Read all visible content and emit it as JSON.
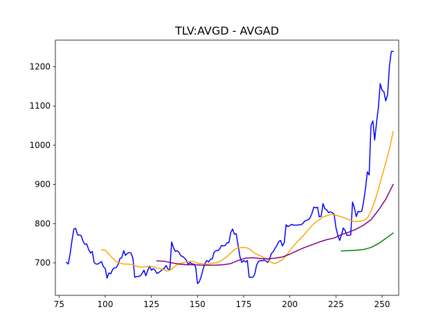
{
  "chart_data": {
    "type": "line",
    "title": "TLV:AVGD - AVGAD",
    "xlabel": "",
    "ylabel": "",
    "xlim": [
      73,
      259
    ],
    "ylim": [
      617,
      1268
    ],
    "x_ticks": [
      75,
      100,
      125,
      150,
      175,
      200,
      225,
      250
    ],
    "y_ticks": [
      700,
      800,
      900,
      1000,
      1100,
      1200
    ],
    "grid": false,
    "legend": "none",
    "series": [
      {
        "color": "#0000ff",
        "points": [
          [
            79,
            701
          ],
          [
            80,
            697
          ],
          [
            81,
            723
          ],
          [
            82,
            757
          ],
          [
            83,
            786
          ],
          [
            84,
            788
          ],
          [
            85,
            771
          ],
          [
            86,
            771
          ],
          [
            87,
            769
          ],
          [
            88,
            755
          ],
          [
            89,
            747
          ],
          [
            90,
            748
          ],
          [
            91,
            734
          ],
          [
            92,
            725
          ],
          [
            93,
            729
          ],
          [
            94,
            701
          ],
          [
            95,
            697
          ],
          [
            96,
            697
          ],
          [
            97,
            700
          ],
          [
            98,
            703
          ],
          [
            99,
            690
          ],
          [
            100,
            686
          ],
          [
            101,
            661
          ],
          [
            102,
            674
          ],
          [
            103,
            672
          ],
          [
            104,
            683
          ],
          [
            105,
            687
          ],
          [
            106,
            688
          ],
          [
            107,
            696
          ],
          [
            108,
            711
          ],
          [
            109,
            713
          ],
          [
            110,
            731
          ],
          [
            111,
            719
          ],
          [
            112,
            724
          ],
          [
            113,
            726
          ],
          [
            114,
            725
          ],
          [
            115,
            712
          ],
          [
            116,
            663
          ],
          [
            117,
            665
          ],
          [
            118,
            665
          ],
          [
            119,
            667
          ],
          [
            120,
            673
          ],
          [
            121,
            681
          ],
          [
            122,
            667
          ],
          [
            123,
            680
          ],
          [
            124,
            692
          ],
          [
            125,
            681
          ],
          [
            126,
            685
          ],
          [
            127,
            681
          ],
          [
            128,
            673
          ],
          [
            129,
            675
          ],
          [
            130,
            679
          ],
          [
            131,
            683
          ],
          [
            132,
            686
          ],
          [
            133,
            693
          ],
          [
            134,
            684
          ],
          [
            135,
            682
          ],
          [
            136,
            753
          ],
          [
            137,
            738
          ],
          [
            138,
            729
          ],
          [
            139,
            731
          ],
          [
            140,
            726
          ],
          [
            141,
            718
          ],
          [
            142,
            716
          ],
          [
            143,
            712
          ],
          [
            144,
            706
          ],
          [
            145,
            696
          ],
          [
            146,
            701
          ],
          [
            147,
            697
          ],
          [
            148,
            697
          ],
          [
            149,
            689
          ],
          [
            150,
            647
          ],
          [
            151,
            652
          ],
          [
            152,
            665
          ],
          [
            153,
            683
          ],
          [
            154,
            698
          ],
          [
            155,
            706
          ],
          [
            156,
            702
          ],
          [
            157,
            709
          ],
          [
            158,
            710
          ],
          [
            159,
            727
          ],
          [
            160,
            731
          ],
          [
            161,
            731
          ],
          [
            162,
            735
          ],
          [
            163,
            744
          ],
          [
            164,
            743
          ],
          [
            165,
            744
          ],
          [
            166,
            751
          ],
          [
            167,
            751
          ],
          [
            168,
            777
          ],
          [
            169,
            786
          ],
          [
            170,
            773
          ],
          [
            171,
            774
          ],
          [
            172,
            744
          ],
          [
            173,
            715
          ],
          [
            174,
            701
          ],
          [
            175,
            706
          ],
          [
            176,
            702
          ],
          [
            177,
            706
          ],
          [
            178,
            663
          ],
          [
            179,
            663
          ],
          [
            180,
            663
          ],
          [
            181,
            671
          ],
          [
            182,
            694
          ],
          [
            183,
            703
          ],
          [
            184,
            706
          ],
          [
            185,
            705
          ],
          [
            186,
            707
          ],
          [
            187,
            705
          ],
          [
            188,
            701
          ],
          [
            189,
            708
          ],
          [
            190,
            724
          ],
          [
            191,
            728
          ],
          [
            192,
            737
          ],
          [
            193,
            744
          ],
          [
            194,
            754
          ],
          [
            195,
            757
          ],
          [
            196,
            743
          ],
          [
            197,
            752
          ],
          [
            198,
            797
          ],
          [
            199,
            792
          ],
          [
            200,
            795
          ],
          [
            201,
            798
          ],
          [
            202,
            796
          ],
          [
            203,
            796
          ],
          [
            204,
            796
          ],
          [
            205,
            797
          ],
          [
            206,
            797
          ],
          [
            207,
            800
          ],
          [
            208,
            806
          ],
          [
            209,
            808
          ],
          [
            210,
            810
          ],
          [
            211,
            815
          ],
          [
            212,
            826
          ],
          [
            213,
            842
          ],
          [
            214,
            840
          ],
          [
            215,
            842
          ],
          [
            216,
            817
          ],
          [
            217,
            819
          ],
          [
            218,
            851
          ],
          [
            219,
            838
          ],
          [
            220,
            835
          ],
          [
            221,
            828
          ],
          [
            222,
            830
          ],
          [
            223,
            828
          ],
          [
            224,
            824
          ],
          [
            225,
            790
          ],
          [
            226,
            771
          ],
          [
            227,
            757
          ],
          [
            228,
            771
          ],
          [
            229,
            789
          ],
          [
            230,
            782
          ],
          [
            231,
            770
          ],
          [
            232,
            770
          ],
          [
            233,
            771
          ],
          [
            234,
            855
          ],
          [
            235,
            840
          ],
          [
            236,
            818
          ],
          [
            237,
            831
          ],
          [
            238,
            830
          ],
          [
            239,
            832
          ],
          [
            240,
            857
          ],
          [
            241,
            889
          ],
          [
            242,
            932
          ],
          [
            243,
            924
          ],
          [
            244,
            1051
          ],
          [
            245,
            1062
          ],
          [
            246,
            1013
          ],
          [
            247,
            1058
          ],
          [
            248,
            1097
          ],
          [
            249,
            1157
          ],
          [
            250,
            1140
          ],
          [
            251,
            1136
          ],
          [
            252,
            1113
          ],
          [
            253,
            1129
          ],
          [
            254,
            1203
          ],
          [
            255,
            1239
          ],
          [
            256,
            1239
          ]
        ]
      },
      {
        "color": "#ffa500",
        "points": [
          [
            98,
            733
          ],
          [
            100,
            732
          ],
          [
            102,
            722
          ],
          [
            104,
            712
          ],
          [
            106,
            703
          ],
          [
            108,
            699
          ],
          [
            110,
            697
          ],
          [
            112,
            697
          ],
          [
            114,
            696
          ],
          [
            116,
            693
          ],
          [
            118,
            690
          ],
          [
            120,
            689
          ],
          [
            122,
            690
          ],
          [
            124,
            691
          ],
          [
            126,
            690
          ],
          [
            128,
            687
          ],
          [
            130,
            685
          ],
          [
            132,
            682
          ],
          [
            134,
            679
          ],
          [
            136,
            684
          ],
          [
            138,
            692
          ],
          [
            140,
            698
          ],
          [
            142,
            700
          ],
          [
            144,
            702
          ],
          [
            146,
            704
          ],
          [
            148,
            703
          ],
          [
            150,
            699
          ],
          [
            152,
            698
          ],
          [
            154,
            696
          ],
          [
            156,
            697
          ],
          [
            158,
            699
          ],
          [
            160,
            700
          ],
          [
            162,
            703
          ],
          [
            164,
            709
          ],
          [
            166,
            716
          ],
          [
            168,
            725
          ],
          [
            170,
            734
          ],
          [
            172,
            738
          ],
          [
            174,
            739
          ],
          [
            176,
            739
          ],
          [
            178,
            736
          ],
          [
            180,
            728
          ],
          [
            182,
            722
          ],
          [
            184,
            718
          ],
          [
            186,
            713
          ],
          [
            188,
            708
          ],
          [
            190,
            701
          ],
          [
            192,
            698
          ],
          [
            194,
            702
          ],
          [
            196,
            708
          ],
          [
            198,
            718
          ],
          [
            200,
            731
          ],
          [
            202,
            743
          ],
          [
            204,
            753
          ],
          [
            206,
            763
          ],
          [
            208,
            773
          ],
          [
            210,
            784
          ],
          [
            212,
            795
          ],
          [
            214,
            804
          ],
          [
            216,
            810
          ],
          [
            218,
            817
          ],
          [
            220,
            820
          ],
          [
            222,
            823
          ],
          [
            224,
            823
          ],
          [
            226,
            820
          ],
          [
            228,
            817
          ],
          [
            230,
            814
          ],
          [
            232,
            810
          ],
          [
            234,
            806
          ],
          [
            236,
            805
          ],
          [
            238,
            806
          ],
          [
            240,
            808
          ],
          [
            242,
            814
          ],
          [
            244,
            832
          ],
          [
            246,
            856
          ],
          [
            248,
            888
          ],
          [
            250,
            922
          ],
          [
            252,
            955
          ],
          [
            254,
            990
          ],
          [
            256,
            1035
          ]
        ]
      },
      {
        "color": "#800080",
        "points": [
          [
            128,
            705
          ],
          [
            132,
            704
          ],
          [
            136,
            700
          ],
          [
            140,
            697
          ],
          [
            144,
            695
          ],
          [
            148,
            695
          ],
          [
            152,
            694
          ],
          [
            156,
            694
          ],
          [
            160,
            694
          ],
          [
            164,
            695
          ],
          [
            168,
            698
          ],
          [
            172,
            706
          ],
          [
            176,
            712
          ],
          [
            180,
            713
          ],
          [
            184,
            711
          ],
          [
            188,
            710
          ],
          [
            192,
            712
          ],
          [
            196,
            715
          ],
          [
            200,
            722
          ],
          [
            204,
            731
          ],
          [
            208,
            739
          ],
          [
            212,
            746
          ],
          [
            216,
            753
          ],
          [
            220,
            759
          ],
          [
            224,
            763
          ],
          [
            228,
            772
          ],
          [
            232,
            778
          ],
          [
            236,
            786
          ],
          [
            240,
            796
          ],
          [
            244,
            810
          ],
          [
            248,
            834
          ],
          [
            252,
            862
          ],
          [
            256,
            900
          ]
        ]
      },
      {
        "color": "#008000",
        "points": [
          [
            228,
            730
          ],
          [
            232,
            731
          ],
          [
            236,
            732
          ],
          [
            240,
            734
          ],
          [
            244,
            739
          ],
          [
            248,
            749
          ],
          [
            252,
            762
          ],
          [
            256,
            776
          ]
        ]
      }
    ]
  }
}
